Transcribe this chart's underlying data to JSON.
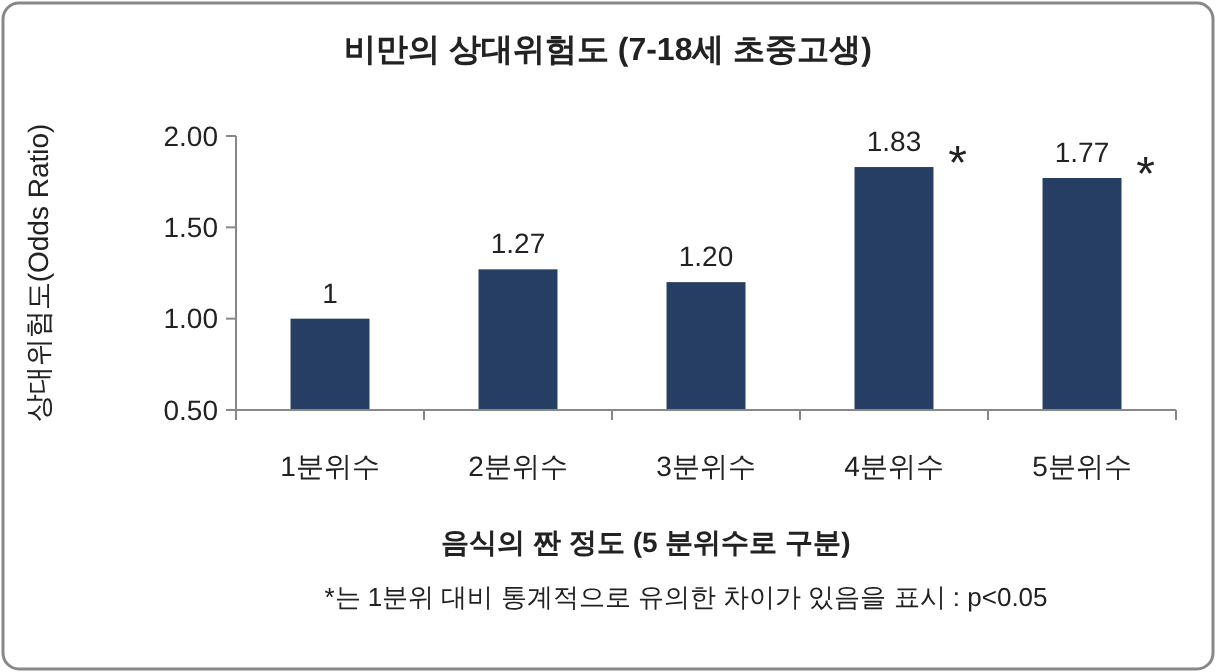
{
  "chart_data": {
    "type": "bar",
    "title": "비만의 상대위험도 (7-18세 초중고생)",
    "xlabel": "음식의 짠 정도 (5 분위수로 구분)",
    "ylabel": "상대위험도(Odds Ratio)",
    "categories": [
      "1분위수",
      "2분위수",
      "3분위수",
      "4분위수",
      "5분위수"
    ],
    "values": [
      1,
      1.27,
      1.2,
      1.83,
      1.77
    ],
    "value_labels": [
      "1",
      "1.27",
      "1.20",
      "1.83",
      "1.77"
    ],
    "color": "#263e63",
    "ylim": [
      0.5,
      2.0
    ],
    "yticks": [
      {
        "value": 0.5,
        "label": "0.50"
      },
      {
        "value": 1,
        "label": "1.00"
      },
      {
        "value": 1.5,
        "label": "1.50"
      },
      {
        "value": 2,
        "label": "2.00"
      }
    ],
    "grid": false,
    "annotations": [
      {
        "text": "*",
        "x": "4분위수",
        "y": 1.83
      },
      {
        "text": "*",
        "x": "5분위수",
        "y": 1.77
      },
      "*는 1분위 대비 통계적으로 유의한 차이가 있음을 표시 : p<0.05"
    ]
  }
}
